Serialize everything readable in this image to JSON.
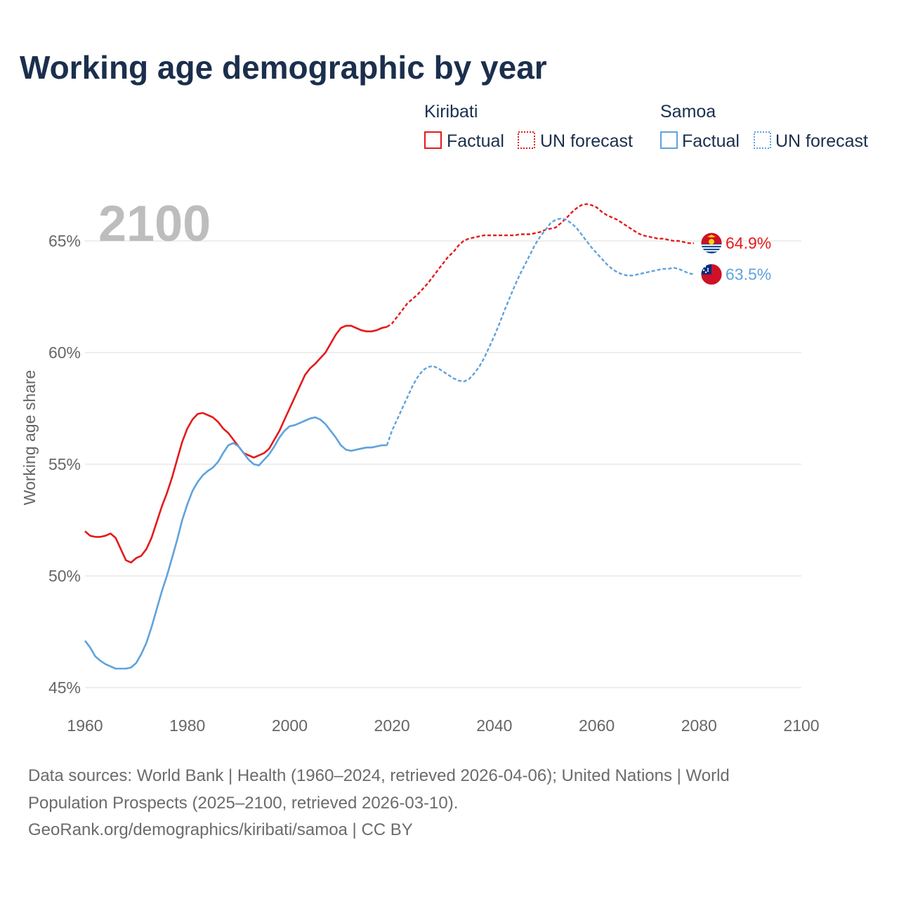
{
  "chart_data": {
    "type": "line",
    "title": "Working age demographic by year",
    "ylabel": "Working age share",
    "xlabel": "",
    "xlim": [
      1960,
      2100
    ],
    "ylim": [
      45,
      67
    ],
    "x_ticks": [
      "1960",
      "1980",
      "2000",
      "2020",
      "2040",
      "2060",
      "2080",
      "2100"
    ],
    "y_ticks": [
      {
        "value": 45,
        "label": "45%"
      },
      {
        "value": 50,
        "label": "50%"
      },
      {
        "value": 55,
        "label": "55%"
      },
      {
        "value": 60,
        "label": "60%"
      },
      {
        "value": 65,
        "label": "65%"
      }
    ],
    "year_label": "2100",
    "legend": {
      "kiribati_group": "Kiribati",
      "samoa_group": "Samoa",
      "factual_label": "Factual",
      "forecast_label": "UN forecast"
    },
    "series": [
      {
        "name": "Kiribati",
        "color": "#e41a1c",
        "end_label": "64.9%",
        "flag": "kiribati-flag",
        "factual": [
          [
            1960,
            52.0
          ],
          [
            1961,
            51.8
          ],
          [
            1962,
            51.75
          ],
          [
            1963,
            51.75
          ],
          [
            1964,
            51.8
          ],
          [
            1965,
            51.9
          ],
          [
            1966,
            51.7
          ],
          [
            1967,
            51.2
          ],
          [
            1968,
            50.7
          ],
          [
            1969,
            50.6
          ],
          [
            1970,
            50.8
          ],
          [
            1971,
            50.9
          ],
          [
            1972,
            51.2
          ],
          [
            1973,
            51.7
          ],
          [
            1974,
            52.4
          ],
          [
            1975,
            53.1
          ],
          [
            1976,
            53.7
          ],
          [
            1977,
            54.4
          ],
          [
            1978,
            55.2
          ],
          [
            1979,
            56.0
          ],
          [
            1980,
            56.6
          ],
          [
            1981,
            57.0
          ],
          [
            1982,
            57.25
          ],
          [
            1983,
            57.3
          ],
          [
            1984,
            57.2
          ],
          [
            1985,
            57.1
          ],
          [
            1986,
            56.9
          ],
          [
            1987,
            56.6
          ],
          [
            1988,
            56.4
          ],
          [
            1989,
            56.1
          ],
          [
            1990,
            55.8
          ],
          [
            1991,
            55.5
          ],
          [
            1992,
            55.4
          ],
          [
            1993,
            55.3
          ],
          [
            1994,
            55.4
          ],
          [
            1995,
            55.5
          ],
          [
            1996,
            55.7
          ],
          [
            1997,
            56.1
          ],
          [
            1998,
            56.5
          ],
          [
            1999,
            57.0
          ],
          [
            2000,
            57.5
          ],
          [
            2001,
            58.0
          ],
          [
            2002,
            58.5
          ],
          [
            2003,
            59.0
          ],
          [
            2004,
            59.3
          ],
          [
            2005,
            59.5
          ],
          [
            2006,
            59.75
          ],
          [
            2007,
            60.0
          ],
          [
            2008,
            60.4
          ],
          [
            2009,
            60.8
          ],
          [
            2010,
            61.1
          ],
          [
            2011,
            61.2
          ],
          [
            2012,
            61.2
          ],
          [
            2013,
            61.1
          ],
          [
            2014,
            61.0
          ],
          [
            2015,
            60.95
          ],
          [
            2016,
            60.95
          ],
          [
            2017,
            61.0
          ],
          [
            2018,
            61.1
          ],
          [
            2019,
            61.15
          ]
        ],
        "forecast": [
          [
            2019,
            61.15
          ],
          [
            2020,
            61.3
          ],
          [
            2021,
            61.6
          ],
          [
            2022,
            61.9
          ],
          [
            2023,
            62.2
          ],
          [
            2024,
            62.4
          ],
          [
            2025,
            62.6
          ],
          [
            2026,
            62.85
          ],
          [
            2027,
            63.1
          ],
          [
            2028,
            63.4
          ],
          [
            2029,
            63.7
          ],
          [
            2030,
            64.0
          ],
          [
            2031,
            64.3
          ],
          [
            2032,
            64.5
          ],
          [
            2033,
            64.8
          ],
          [
            2034,
            65.0
          ],
          [
            2035,
            65.1
          ],
          [
            2036,
            65.15
          ],
          [
            2037,
            65.2
          ],
          [
            2038,
            65.25
          ],
          [
            2039,
            65.25
          ],
          [
            2040,
            65.25
          ],
          [
            2041,
            65.25
          ],
          [
            2042,
            65.25
          ],
          [
            2043,
            65.25
          ],
          [
            2044,
            65.25
          ],
          [
            2045,
            65.3
          ],
          [
            2046,
            65.3
          ],
          [
            2047,
            65.3
          ],
          [
            2048,
            65.35
          ],
          [
            2049,
            65.4
          ],
          [
            2050,
            65.5
          ],
          [
            2051,
            65.55
          ],
          [
            2052,
            65.6
          ],
          [
            2053,
            65.8
          ],
          [
            2054,
            66.0
          ],
          [
            2055,
            66.25
          ],
          [
            2056,
            66.45
          ],
          [
            2057,
            66.6
          ],
          [
            2058,
            66.65
          ],
          [
            2059,
            66.6
          ],
          [
            2060,
            66.5
          ],
          [
            2061,
            66.3
          ],
          [
            2062,
            66.15
          ],
          [
            2063,
            66.05
          ],
          [
            2064,
            65.95
          ],
          [
            2065,
            65.8
          ],
          [
            2066,
            65.65
          ],
          [
            2067,
            65.5
          ],
          [
            2068,
            65.35
          ],
          [
            2069,
            65.25
          ],
          [
            2070,
            65.2
          ],
          [
            2071,
            65.15
          ],
          [
            2072,
            65.1
          ],
          [
            2073,
            65.1
          ],
          [
            2074,
            65.05
          ],
          [
            2075,
            65.0
          ],
          [
            2076,
            65.0
          ],
          [
            2077,
            64.95
          ],
          [
            2078,
            64.9
          ],
          [
            2079,
            64.9
          ]
        ]
      },
      {
        "name": "Samoa",
        "color": "#5fa2dd",
        "end_label": "63.5%",
        "flag": "samoa-flag",
        "factual": [
          [
            1960,
            47.1
          ],
          [
            1961,
            46.8
          ],
          [
            1962,
            46.4
          ],
          [
            1963,
            46.2
          ],
          [
            1964,
            46.05
          ],
          [
            1965,
            45.95
          ],
          [
            1966,
            45.85
          ],
          [
            1967,
            45.85
          ],
          [
            1968,
            45.85
          ],
          [
            1969,
            45.9
          ],
          [
            1970,
            46.1
          ],
          [
            1971,
            46.5
          ],
          [
            1972,
            47.0
          ],
          [
            1973,
            47.7
          ],
          [
            1974,
            48.5
          ],
          [
            1975,
            49.3
          ],
          [
            1976,
            50.0
          ],
          [
            1977,
            50.8
          ],
          [
            1978,
            51.6
          ],
          [
            1979,
            52.5
          ],
          [
            1980,
            53.2
          ],
          [
            1981,
            53.8
          ],
          [
            1982,
            54.2
          ],
          [
            1983,
            54.5
          ],
          [
            1984,
            54.7
          ],
          [
            1985,
            54.85
          ],
          [
            1986,
            55.1
          ],
          [
            1987,
            55.5
          ],
          [
            1988,
            55.85
          ],
          [
            1989,
            55.95
          ],
          [
            1990,
            55.8
          ],
          [
            1991,
            55.5
          ],
          [
            1992,
            55.2
          ],
          [
            1993,
            55.0
          ],
          [
            1994,
            54.95
          ],
          [
            1995,
            55.2
          ],
          [
            1996,
            55.45
          ],
          [
            1997,
            55.8
          ],
          [
            1998,
            56.2
          ],
          [
            1999,
            56.5
          ],
          [
            2000,
            56.7
          ],
          [
            2001,
            56.75
          ],
          [
            2002,
            56.85
          ],
          [
            2003,
            56.95
          ],
          [
            2004,
            57.05
          ],
          [
            2005,
            57.1
          ],
          [
            2006,
            57.0
          ],
          [
            2007,
            56.8
          ],
          [
            2008,
            56.5
          ],
          [
            2009,
            56.2
          ],
          [
            2010,
            55.85
          ],
          [
            2011,
            55.65
          ],
          [
            2012,
            55.6
          ],
          [
            2013,
            55.65
          ],
          [
            2014,
            55.7
          ],
          [
            2015,
            55.75
          ],
          [
            2016,
            55.75
          ],
          [
            2017,
            55.8
          ],
          [
            2018,
            55.85
          ],
          [
            2019,
            55.85
          ]
        ],
        "forecast": [
          [
            2019,
            55.85
          ],
          [
            2020,
            56.5
          ],
          [
            2021,
            57.0
          ],
          [
            2022,
            57.5
          ],
          [
            2023,
            58.0
          ],
          [
            2024,
            58.5
          ],
          [
            2025,
            58.9
          ],
          [
            2026,
            59.2
          ],
          [
            2027,
            59.35
          ],
          [
            2028,
            59.4
          ],
          [
            2029,
            59.3
          ],
          [
            2030,
            59.15
          ],
          [
            2031,
            59.0
          ],
          [
            2032,
            58.85
          ],
          [
            2033,
            58.75
          ],
          [
            2034,
            58.7
          ],
          [
            2035,
            58.8
          ],
          [
            2036,
            59.05
          ],
          [
            2037,
            59.35
          ],
          [
            2038,
            59.75
          ],
          [
            2039,
            60.25
          ],
          [
            2040,
            60.75
          ],
          [
            2041,
            61.3
          ],
          [
            2042,
            61.9
          ],
          [
            2043,
            62.45
          ],
          [
            2044,
            63.0
          ],
          [
            2045,
            63.5
          ],
          [
            2046,
            63.95
          ],
          [
            2047,
            64.4
          ],
          [
            2048,
            64.85
          ],
          [
            2049,
            65.2
          ],
          [
            2050,
            65.5
          ],
          [
            2051,
            65.8
          ],
          [
            2052,
            65.95
          ],
          [
            2053,
            66.0
          ],
          [
            2054,
            65.95
          ],
          [
            2055,
            65.8
          ],
          [
            2056,
            65.6
          ],
          [
            2057,
            65.3
          ],
          [
            2058,
            65.0
          ],
          [
            2059,
            64.7
          ],
          [
            2060,
            64.45
          ],
          [
            2061,
            64.2
          ],
          [
            2062,
            63.95
          ],
          [
            2063,
            63.75
          ],
          [
            2064,
            63.6
          ],
          [
            2065,
            63.5
          ],
          [
            2066,
            63.45
          ],
          [
            2067,
            63.45
          ],
          [
            2068,
            63.5
          ],
          [
            2069,
            63.55
          ],
          [
            2070,
            63.6
          ],
          [
            2071,
            63.65
          ],
          [
            2072,
            63.7
          ],
          [
            2073,
            63.75
          ],
          [
            2074,
            63.75
          ],
          [
            2075,
            63.8
          ],
          [
            2076,
            63.75
          ],
          [
            2077,
            63.65
          ],
          [
            2078,
            63.55
          ],
          [
            2079,
            63.5
          ]
        ]
      }
    ]
  },
  "source": {
    "line1": "Data sources: World Bank | Health (1960–2024, retrieved 2026-04-06); United Nations | World",
    "line2": "Population Prospects (2025–2100, retrieved 2026-03-10).",
    "line3": "GeoRank.org/demographics/kiribati/samoa | CC BY"
  }
}
